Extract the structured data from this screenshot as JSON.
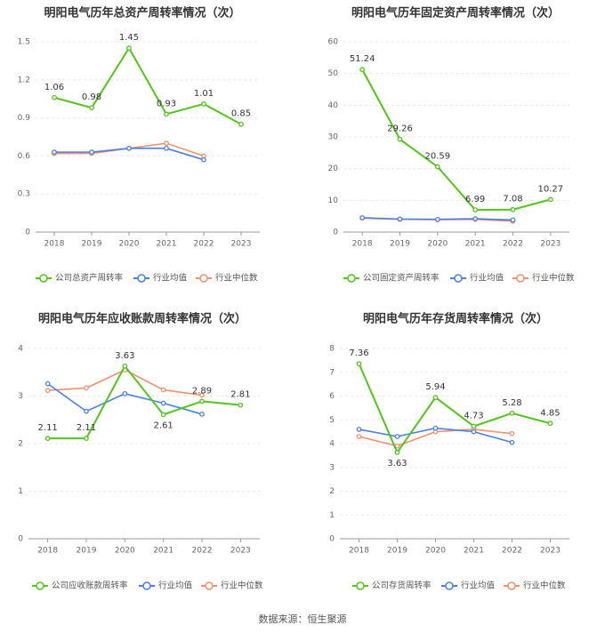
{
  "source_label": "数据来源：恒生聚源",
  "colors": {
    "company": "#52c41a",
    "industry_avg": "#4a7fe0",
    "industry_median": "#f0906f",
    "axis_text": "#666666",
    "grid": "#e8e8e8",
    "title": "#333333"
  },
  "chart_data": [
    {
      "type": "line",
      "title": "明阳电气历年总资产周转率情况（次）",
      "categories": [
        "2018",
        "2019",
        "2020",
        "2021",
        "2022",
        "2023"
      ],
      "ylim": [
        0,
        1.5
      ],
      "yticks": [
        "0",
        "0.3",
        "0.6",
        "0.9",
        "1.2",
        "1.5"
      ],
      "series": [
        {
          "name": "公司总资产周转率",
          "values": [
            1.06,
            0.98,
            1.45,
            0.93,
            1.01,
            0.85
          ],
          "labels": [
            "1.06",
            "0.98",
            "1.45",
            "0.93",
            "1.01",
            "0.85"
          ]
        },
        {
          "name": "行业均值",
          "values": [
            0.63,
            0.63,
            0.66,
            0.66,
            0.57,
            null
          ]
        },
        {
          "name": "行业中位数",
          "values": [
            0.62,
            0.62,
            0.66,
            0.7,
            0.6,
            null
          ]
        }
      ]
    },
    {
      "type": "line",
      "title": "明阳电气历年固定资产周转率情况（次）",
      "categories": [
        "2018",
        "2019",
        "2020",
        "2021",
        "2022",
        "2023"
      ],
      "ylim": [
        0,
        60
      ],
      "yticks": [
        "0",
        "10",
        "20",
        "30",
        "40",
        "50",
        "60"
      ],
      "series": [
        {
          "name": "公司固定资产周转率",
          "values": [
            51.24,
            29.26,
            20.59,
            6.99,
            7.08,
            10.27
          ],
          "labels": [
            "51.24",
            "29.26",
            "20.59",
            "6.99",
            "7.08",
            "10.27"
          ]
        },
        {
          "name": "行业均值",
          "values": [
            4.5,
            4.1,
            4.0,
            4.2,
            3.8,
            null
          ]
        },
        {
          "name": "行业中位数",
          "values": [
            4.4,
            4.0,
            3.9,
            4.0,
            3.4,
            null
          ]
        }
      ]
    },
    {
      "type": "line",
      "title": "明阳电气历年应收账款周转率情况（次）",
      "categories": [
        "2018",
        "2019",
        "2020",
        "2021",
        "2022",
        "2023"
      ],
      "ylim": [
        0,
        4
      ],
      "yticks": [
        "0",
        "1",
        "2",
        "3",
        "4"
      ],
      "series": [
        {
          "name": "公司应收账款周转率",
          "values": [
            2.11,
            2.11,
            3.63,
            2.61,
            2.89,
            2.81
          ],
          "labels": [
            "2.11",
            "2.11",
            "3.63",
            "2.61",
            "2.89",
            "2.81"
          ]
        },
        {
          "name": "行业均值",
          "values": [
            3.26,
            2.68,
            3.05,
            2.85,
            2.62,
            null
          ]
        },
        {
          "name": "行业中位数",
          "values": [
            3.12,
            3.17,
            3.55,
            3.13,
            3.02,
            null
          ]
        }
      ]
    },
    {
      "type": "line",
      "title": "明阳电气历年存货周转率情况（次）",
      "categories": [
        "2018",
        "2019",
        "2020",
        "2021",
        "2022",
        "2023"
      ],
      "ylim": [
        0,
        8
      ],
      "yticks": [
        "0",
        "1",
        "2",
        "3",
        "4",
        "5",
        "6",
        "7",
        "8"
      ],
      "series": [
        {
          "name": "公司存货周转率",
          "values": [
            7.36,
            3.63,
            5.94,
            4.73,
            5.28,
            4.85
          ],
          "labels": [
            "7.36",
            "3.63",
            "5.94",
            "4.73",
            "5.28",
            "4.85"
          ]
        },
        {
          "name": "行业均值",
          "values": [
            4.6,
            4.3,
            4.65,
            4.5,
            4.05,
            null
          ]
        },
        {
          "name": "行业中位数",
          "values": [
            4.3,
            3.9,
            4.5,
            4.6,
            4.42,
            null
          ]
        }
      ]
    }
  ]
}
